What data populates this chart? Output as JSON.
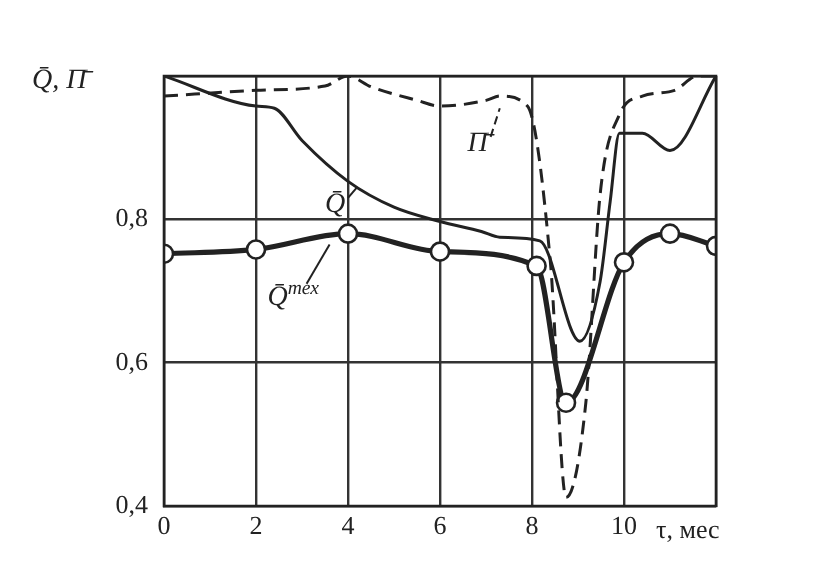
{
  "chart_data": {
    "type": "line",
    "ylabel": "Q̄, Π̄",
    "xlabel": "τ, мес",
    "xlim": [
      0,
      12
    ],
    "ylim": [
      0.4,
      1.0
    ],
    "xticks": [
      0,
      2,
      4,
      6,
      8,
      10,
      {
        "value": 12,
        "label": null
      }
    ],
    "yticks": [
      {
        "value": 0.4,
        "label": "0,4"
      },
      {
        "value": 0.6,
        "label": "0,6"
      },
      {
        "value": 0.8,
        "label": "0,8"
      },
      {
        "value": 1.0,
        "label": null
      }
    ],
    "grid": true,
    "legend": "center",
    "series": [
      {
        "name": "Π̄",
        "color": "#222222",
        "line_style": "dashed",
        "marker": "none",
        "x": [
          0,
          2,
          3.5,
          4,
          4.5,
          5.5,
          6,
          7,
          7.3,
          7.9,
          8.4,
          8.74,
          9.17,
          9.48,
          9.9,
          10.4,
          11.1,
          11.6,
          12
        ],
        "values": [
          0.972,
          0.98,
          0.986,
          1.0,
          0.985,
          0.966,
          0.958,
          0.966,
          0.972,
          0.958,
          0.74,
          0.412,
          0.544,
          0.834,
          0.946,
          0.972,
          0.98,
          1.0,
          1.0
        ]
      },
      {
        "name": "Q̄",
        "color": "#222222",
        "line_style": "solid",
        "marker": "none",
        "x": [
          0,
          2,
          2.4,
          3,
          4,
          5,
          6,
          6.9,
          7.3,
          8.17,
          9.04,
          9.48,
          9.7,
          9.9,
          10.4,
          11.0,
          12
        ],
        "values": [
          1.0,
          0.958,
          0.955,
          0.91,
          0.853,
          0.817,
          0.797,
          0.783,
          0.775,
          0.77,
          0.63,
          0.713,
          0.825,
          0.92,
          0.92,
          0.896,
          1.0
        ]
      },
      {
        "name": "Q̄$^{тех}$",
        "color": "#222222",
        "line_style": "solid",
        "marker": "circle",
        "x": [
          0,
          2,
          4,
          6,
          8.1,
          8.74,
          10,
          11,
          12
        ],
        "values": [
          0.752,
          0.758,
          0.78,
          0.755,
          0.735,
          0.544,
          0.74,
          0.78,
          0.763
        ]
      }
    ]
  }
}
